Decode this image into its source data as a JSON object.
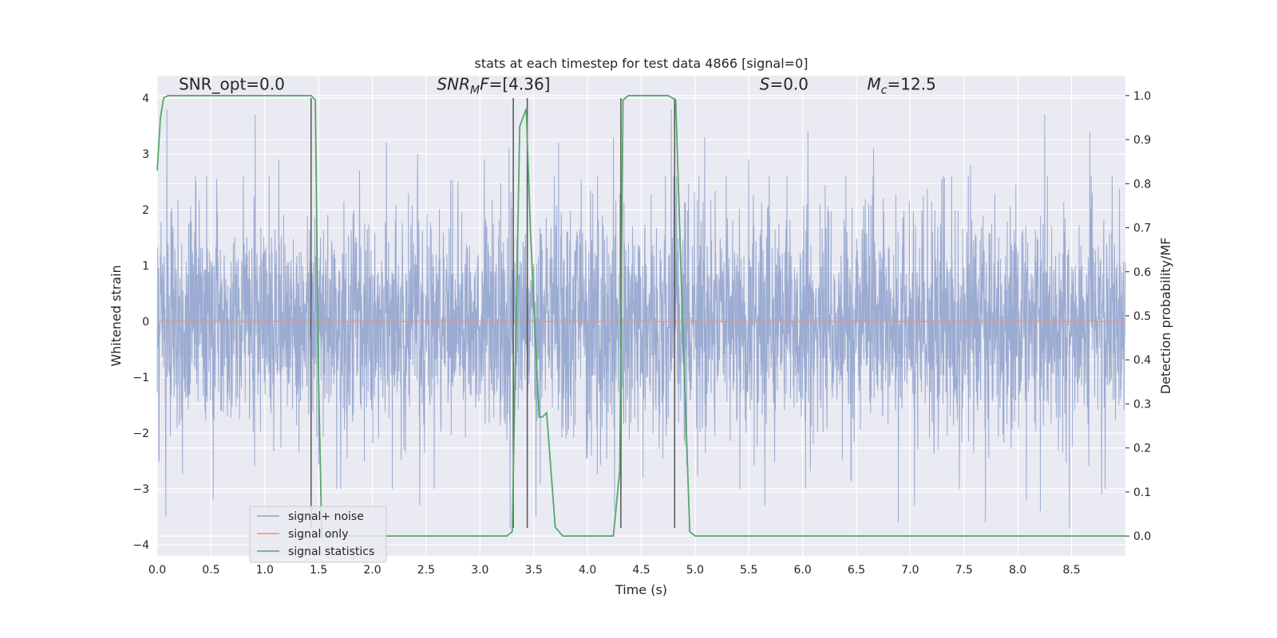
{
  "chart_data": {
    "type": "line",
    "title": "stats at each timestep for test data 4866 [signal=0]",
    "xlabel": "Time (s)",
    "ylabel": "Whitened strain",
    "ylabel_right": "Detection probability/MF",
    "xlim": [
      0.0,
      9.0
    ],
    "ylim": [
      -4.2,
      4.4
    ],
    "ylim_right": [
      -0.045,
      1.045
    ],
    "x_ticks": [
      0.0,
      0.5,
      1.0,
      1.5,
      2.0,
      2.5,
      3.0,
      3.5,
      4.0,
      4.5,
      5.0,
      5.5,
      6.0,
      6.5,
      7.0,
      7.5,
      8.0,
      8.5
    ],
    "y_ticks": [
      -4,
      -3,
      -2,
      -1,
      0,
      1,
      2,
      3,
      4
    ],
    "y_ticks_right": [
      0.0,
      0.1,
      0.2,
      0.3,
      0.4,
      0.5,
      0.6,
      0.7,
      0.8,
      0.9,
      1.0
    ],
    "grid": true,
    "legend_position": "lower-left",
    "annotations": [
      {
        "parts": [
          {
            "t": "SNR_opt=0.0",
            "i": false
          }
        ],
        "x": 0.2,
        "y": 4.15
      },
      {
        "parts": [
          {
            "t": "SNR",
            "i": true
          },
          {
            "t": "M",
            "i": true,
            "sub": true
          },
          {
            "t": "F",
            "i": true
          },
          {
            "t": "=[4.36]",
            "i": false
          }
        ],
        "x": 2.6,
        "y": 4.15
      },
      {
        "parts": [
          {
            "t": "S",
            "i": true
          },
          {
            "t": "=0.0",
            "i": false
          }
        ],
        "x": 5.6,
        "y": 4.15
      },
      {
        "parts": [
          {
            "t": "M",
            "i": true
          },
          {
            "t": "c",
            "i": true,
            "sub": true
          },
          {
            "t": "=12.5",
            "i": false
          }
        ],
        "x": 6.6,
        "y": 4.15
      }
    ],
    "vertical_lines_x": [
      1.43,
      3.31,
      3.44,
      4.31,
      4.81
    ],
    "vertical_lines_ymin": -3.7,
    "vertical_lines_ymax": 4.0,
    "series": [
      {
        "name": "signal+ noise",
        "color": "#8da0cb",
        "style": "noise",
        "sigma": 1.0,
        "x_range": [
          0.0,
          9.0
        ],
        "spikes": [
          [
            0.09,
            3.8
          ],
          [
            0.36,
            2.5
          ],
          [
            0.8,
            2.6
          ],
          [
            0.91,
            3.7
          ],
          [
            1.13,
            2.9
          ],
          [
            1.88,
            2.7
          ],
          [
            2.13,
            3.2
          ],
          [
            2.42,
            3.0
          ],
          [
            3.04,
            2.9
          ],
          [
            3.27,
            3.1
          ],
          [
            3.44,
            4.0
          ],
          [
            3.73,
            3.2
          ],
          [
            4.24,
            3.3
          ],
          [
            4.78,
            3.8
          ],
          [
            5.09,
            3.3
          ],
          [
            5.5,
            2.9
          ],
          [
            6.05,
            3.4
          ],
          [
            6.66,
            3.1
          ],
          [
            7.56,
            2.8
          ],
          [
            8.25,
            3.7
          ],
          [
            8.67,
            3.4
          ],
          [
            0.08,
            -3.5
          ],
          [
            0.52,
            -3.2
          ],
          [
            3.28,
            -3.7
          ],
          [
            3.52,
            -3.5
          ],
          [
            4.25,
            -3.4
          ],
          [
            5.65,
            -3.3
          ],
          [
            6.89,
            -3.6
          ],
          [
            7.04,
            -3.3
          ],
          [
            7.7,
            -3.6
          ],
          [
            8.08,
            -3.2
          ],
          [
            8.21,
            -3.4
          ],
          [
            8.48,
            -3.7
          ],
          [
            8.78,
            -3.1
          ],
          [
            2.44,
            -3.3
          ]
        ]
      },
      {
        "name": "signal only",
        "color": "#fc8d62",
        "x": [
          0.0,
          9.0
        ],
        "y": [
          0.0,
          0.0
        ]
      },
      {
        "name": "signal statistics",
        "color": "#55a868",
        "axis": "right",
        "x": [
          0.0,
          0.03,
          0.06,
          0.1,
          0.2,
          0.4,
          0.6,
          0.8,
          1.0,
          1.2,
          1.35,
          1.43,
          1.47,
          1.5,
          1.53,
          1.6,
          1.8,
          2.0,
          2.5,
          3.0,
          3.25,
          3.3,
          3.37,
          3.43,
          3.47,
          3.55,
          3.58,
          3.62,
          3.7,
          3.77,
          4.0,
          4.24,
          4.3,
          4.33,
          4.38,
          4.4,
          4.6,
          4.75,
          4.82,
          4.88,
          4.95,
          5.0,
          5.5,
          6.0,
          6.5,
          7.0,
          7.5,
          8.0,
          8.5,
          9.0
        ],
        "y": [
          0.83,
          0.95,
          0.995,
          1.0,
          1.0,
          1.0,
          1.0,
          1.0,
          1.0,
          1.0,
          1.0,
          1.0,
          0.99,
          0.35,
          0.0,
          0.0,
          0.0,
          0.0,
          0.0,
          0.0,
          0.0,
          0.01,
          0.93,
          0.97,
          0.69,
          0.27,
          0.27,
          0.28,
          0.02,
          0.0,
          0.0,
          0.0,
          0.15,
          0.99,
          1.0,
          1.0,
          1.0,
          1.0,
          0.99,
          0.52,
          0.01,
          0.0,
          0.0,
          0.0,
          0.0,
          0.0,
          0.0,
          0.0,
          0.0,
          0.0
        ]
      }
    ]
  }
}
